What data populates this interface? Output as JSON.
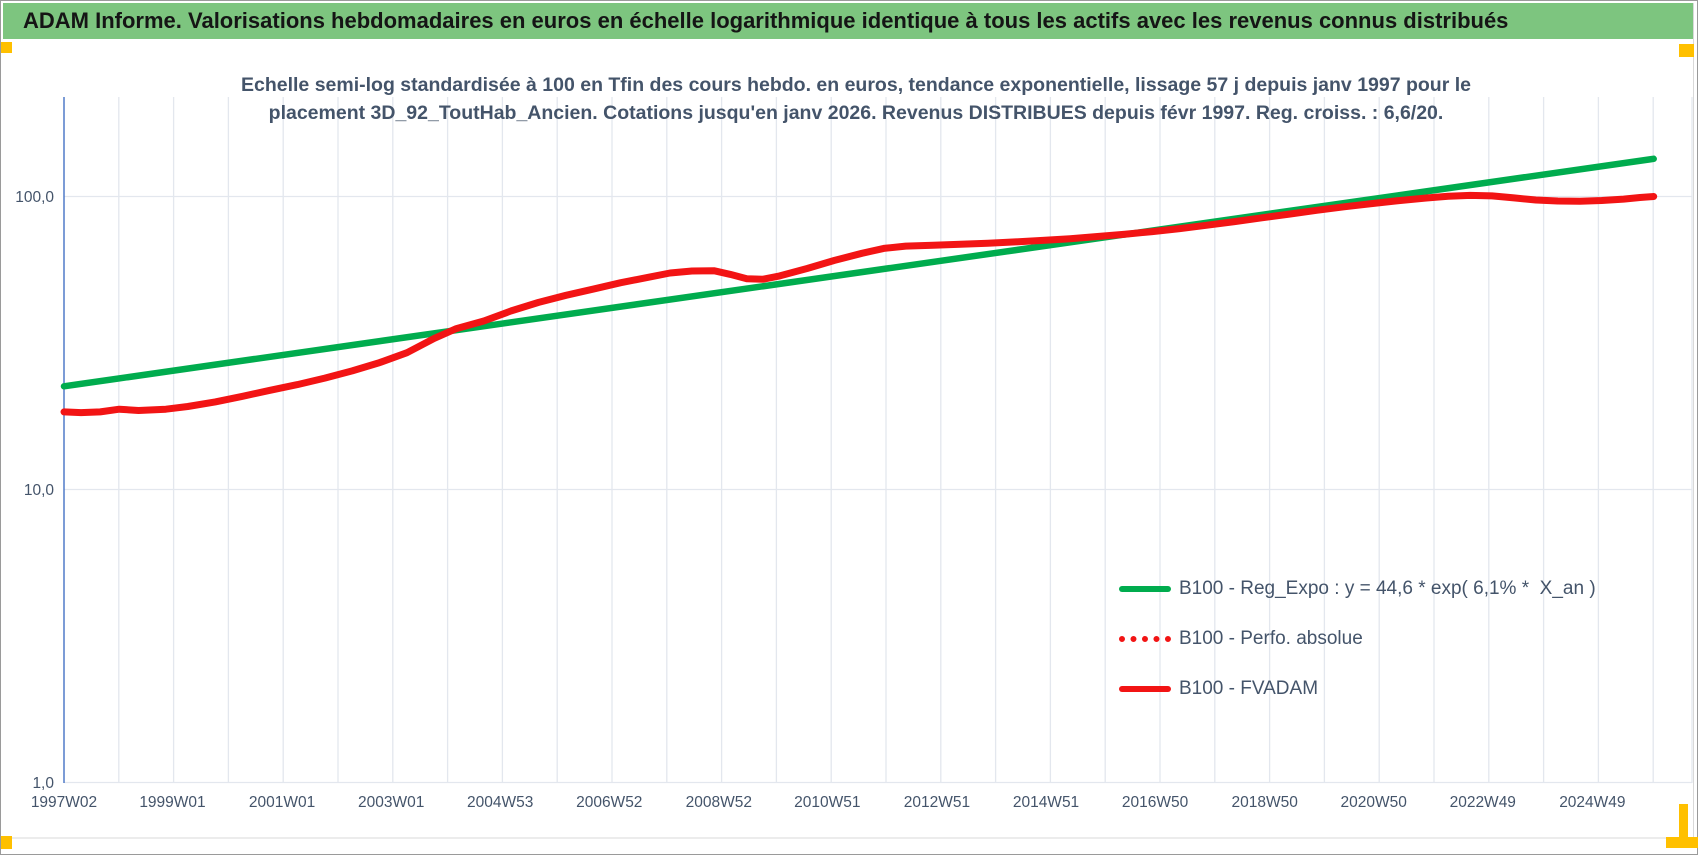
{
  "banner": {
    "title": "ADAM Informe. Valorisations hebdomadaires en euros en échelle logarithmique identique à tous les actifs avec les revenus connus distribués",
    "background_color": "#7DC57F"
  },
  "chart_data": {
    "type": "line",
    "title_line1": "Echelle semi-log standardisée à 100 en Tfin des cours hebdo. en euros, tendance exponentielle, lissage 57 j depuis janv 1997 pour le",
    "title_line2": "placement 3D_92_ToutHab_Ancien. Cotations jusqu'en janv 2026. Revenus DISTRIBUES depuis févr 1997. Reg. croiss. : 6,6/20.",
    "colors": {
      "grid": "#E3E7EE",
      "y_axis_line": "#4472C4",
      "text": "#44546A",
      "green_series": "#00AC4E",
      "red_series": "#F21414",
      "accent_gold": "#FFC000"
    },
    "y_axis": {
      "scale": "log",
      "range": [
        1,
        219
      ],
      "ticks": [
        {
          "label": "100,0",
          "value": 100
        },
        {
          "label": "10,0",
          "value": 10
        },
        {
          "label": "1,0",
          "value": 1
        }
      ]
    },
    "x_axis": {
      "range_years": [
        1997.04,
        2026.75
      ],
      "gridline_every_years": 1,
      "ticks": [
        {
          "label": "1997W02",
          "year": 1997.04
        },
        {
          "label": "1999W01",
          "year": 1999.02
        },
        {
          "label": "2001W01",
          "year": 2001.02
        },
        {
          "label": "2003W01",
          "year": 2003.01
        },
        {
          "label": "2004W53",
          "year": 2005.0
        },
        {
          "label": "2006W52",
          "year": 2006.99
        },
        {
          "label": "2008W52",
          "year": 2008.99
        },
        {
          "label": "2010W51",
          "year": 2010.97
        },
        {
          "label": "2012W51",
          "year": 2012.97
        },
        {
          "label": "2014W51",
          "year": 2014.96
        },
        {
          "label": "2016W50",
          "year": 2016.95
        },
        {
          "label": "2018W50",
          "year": 2018.95
        },
        {
          "label": "2020W50",
          "year": 2020.94
        },
        {
          "label": "2022W49",
          "year": 2022.93
        },
        {
          "label": "2024W49",
          "year": 2024.93
        }
      ]
    },
    "legend_position": "lower-right-inside",
    "series": [
      {
        "name": "B100 - Reg_Expo : y = 44,6 * exp( 6,1% *  X_an )",
        "color": "#00AC4E",
        "style": "solid",
        "width": 6.5,
        "note": "exponential regression, straight on semi-log scale, ~6.1%/year growth",
        "points": [
          [
            1997.04,
            22.5
          ],
          [
            2026.05,
            134.5
          ]
        ]
      },
      {
        "name": "B100 - Perfo. absolue",
        "color": "#F21414",
        "style": "dotted",
        "width": 6,
        "note": "coincides with B100 - FVADAM (hidden beneath solid red line)",
        "points_same_as_series": 2
      },
      {
        "name": "B100 - FVADAM",
        "color": "#F21414",
        "style": "solid",
        "width": 7,
        "points": [
          [
            1997.04,
            18.4
          ],
          [
            1997.35,
            18.3
          ],
          [
            1997.7,
            18.4
          ],
          [
            1998.05,
            18.8
          ],
          [
            1998.4,
            18.6
          ],
          [
            1998.9,
            18.8
          ],
          [
            1999.3,
            19.2
          ],
          [
            1999.8,
            19.9
          ],
          [
            2000.3,
            20.8
          ],
          [
            2000.8,
            21.8
          ],
          [
            2001.3,
            22.8
          ],
          [
            2001.8,
            24.0
          ],
          [
            2002.3,
            25.4
          ],
          [
            2002.8,
            27.1
          ],
          [
            2003.3,
            29.3
          ],
          [
            2003.8,
            32.8
          ],
          [
            2004.2,
            35.4
          ],
          [
            2004.7,
            37.6
          ],
          [
            2005.2,
            40.7
          ],
          [
            2005.7,
            43.5
          ],
          [
            2006.2,
            46.0
          ],
          [
            2006.7,
            48.3
          ],
          [
            2007.2,
            50.8
          ],
          [
            2007.7,
            53.0
          ],
          [
            2008.1,
            54.8
          ],
          [
            2008.5,
            55.7
          ],
          [
            2008.9,
            55.8
          ],
          [
            2009.2,
            54.2
          ],
          [
            2009.5,
            52.4
          ],
          [
            2009.8,
            52.2
          ],
          [
            2010.1,
            53.6
          ],
          [
            2010.6,
            56.8
          ],
          [
            2011.1,
            60.5
          ],
          [
            2011.6,
            64.0
          ],
          [
            2012.0,
            66.5
          ],
          [
            2012.4,
            67.7
          ],
          [
            2012.9,
            68.2
          ],
          [
            2013.4,
            68.7
          ],
          [
            2013.9,
            69.3
          ],
          [
            2014.4,
            70.0
          ],
          [
            2014.9,
            70.8
          ],
          [
            2015.4,
            71.8
          ],
          [
            2015.9,
            73.0
          ],
          [
            2016.4,
            74.3
          ],
          [
            2016.9,
            75.9
          ],
          [
            2017.4,
            77.7
          ],
          [
            2017.9,
            79.8
          ],
          [
            2018.4,
            82.1
          ],
          [
            2018.9,
            84.6
          ],
          [
            2019.4,
            87.1
          ],
          [
            2019.9,
            89.7
          ],
          [
            2020.4,
            92.2
          ],
          [
            2020.9,
            94.6
          ],
          [
            2021.4,
            96.8
          ],
          [
            2021.9,
            98.8
          ],
          [
            2022.3,
            100.2
          ],
          [
            2022.7,
            100.9
          ],
          [
            2023.1,
            100.5
          ],
          [
            2023.5,
            98.9
          ],
          [
            2023.9,
            97.3
          ],
          [
            2024.3,
            96.5
          ],
          [
            2024.7,
            96.3
          ],
          [
            2025.1,
            96.9
          ],
          [
            2025.5,
            98.0
          ],
          [
            2025.8,
            99.2
          ],
          [
            2026.05,
            100.0
          ]
        ]
      }
    ]
  }
}
